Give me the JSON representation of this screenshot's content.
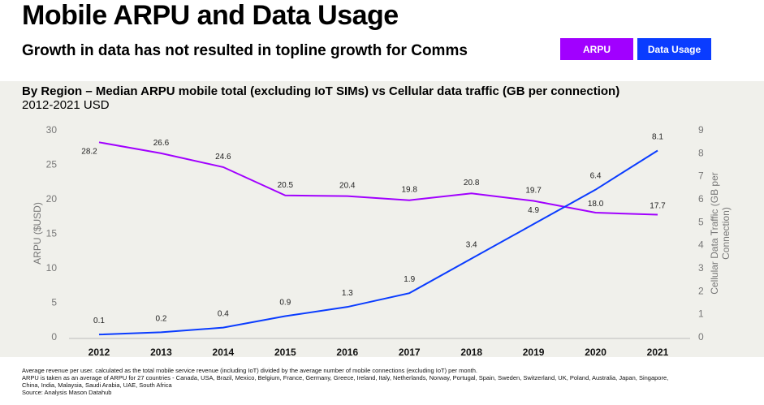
{
  "header": {
    "title": "Mobile ARPU and Data Usage",
    "subtitle": "Growth in data has not resulted in topline growth for Comms"
  },
  "legend": [
    {
      "label": "ARPU",
      "color": "#a100ff"
    },
    {
      "label": "Data Usage",
      "color": "#0a3cff"
    }
  ],
  "chart_title_bold": "By Region – Median ARPU mobile total (excluding IoT SIMs) vs  Cellular data traffic (GB per connection)",
  "chart_title_rest": " 2012-2021 USD",
  "notes": [
    "Average revenue per user. calculated as the total mobile service revenue (including IoT) divided by the average number of mobile connections (excluding IoT) per month.",
    "ARPU is taken as an average of ARPU for 27 countries - Canada, USA, Brazil, Mexico, Belgium, France, Germany, Greece, Ireland, Italy, Netherlands, Norway, Portugal, Spain, Sweden, Switzerland, UK, Poland, Australia, Japan, Singapore,",
    "China, India, Malaysia, Saudi Arabia, UAE, South Africa",
    "Source: Analysis Mason Datahub"
  ],
  "chart_data": {
    "type": "line",
    "categories": [
      "2012",
      "2013",
      "2014",
      "2015",
      "2016",
      "2017",
      "2018",
      "2019",
      "2020",
      "2021"
    ],
    "ylabel": "ARPU ($USD)",
    "ylim": [
      0,
      30
    ],
    "yticks": [
      "0",
      "5",
      "10",
      "15",
      "20",
      "25",
      "30"
    ],
    "y2label": "Cellular Data Traffic (GB per Connection)",
    "y2lim": [
      0,
      9
    ],
    "y2ticks": [
      "0",
      "1",
      "2",
      "3",
      "4",
      "5",
      "6",
      "7",
      "8",
      "9"
    ],
    "series": [
      {
        "name": "ARPU",
        "axis": "left",
        "color": "#a100ff",
        "values": [
          28.2,
          26.6,
          24.6,
          20.5,
          20.4,
          19.8,
          20.8,
          19.7,
          18.0,
          17.7
        ]
      },
      {
        "name": "Data Usage",
        "axis": "right",
        "color": "#0a3cff",
        "values": [
          0.1,
          0.2,
          0.4,
          0.9,
          1.3,
          1.9,
          3.4,
          4.9,
          6.4,
          8.1
        ]
      }
    ],
    "grid": false
  }
}
